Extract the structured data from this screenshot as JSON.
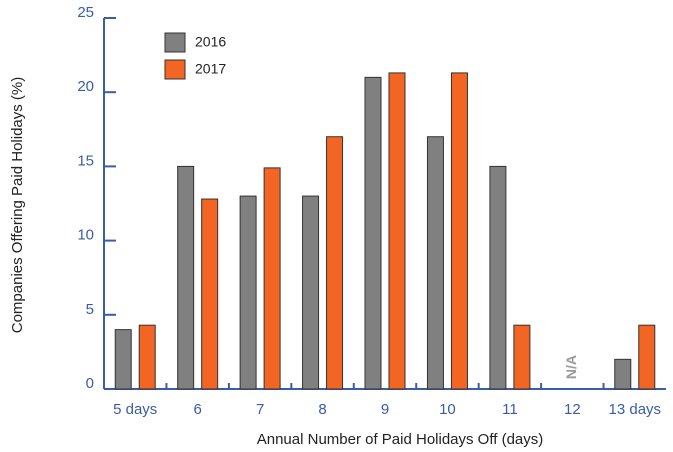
{
  "chart_data": {
    "type": "bar",
    "categories": [
      "5 days",
      "6",
      "7",
      "8",
      "9",
      "10",
      "11",
      "12",
      "13 days"
    ],
    "series": [
      {
        "name": "2016",
        "color": "#808080",
        "values": [
          4,
          15,
          13,
          13,
          21,
          17,
          15,
          null,
          2
        ]
      },
      {
        "name": "2017",
        "color": "#f26522",
        "values": [
          4.3,
          12.8,
          14.9,
          17,
          21.3,
          21.3,
          4.3,
          null,
          4.3
        ]
      }
    ],
    "xlabel": "Annual Number of Paid Holidays Off (days)",
    "ylabel": "Companies Offering Paid Holidays (%)",
    "annotation": "N/A",
    "ylim": [
      0,
      25
    ],
    "yticks": [
      0,
      5,
      10,
      15,
      20,
      25
    ],
    "legend": "upper left",
    "grid": false
  }
}
